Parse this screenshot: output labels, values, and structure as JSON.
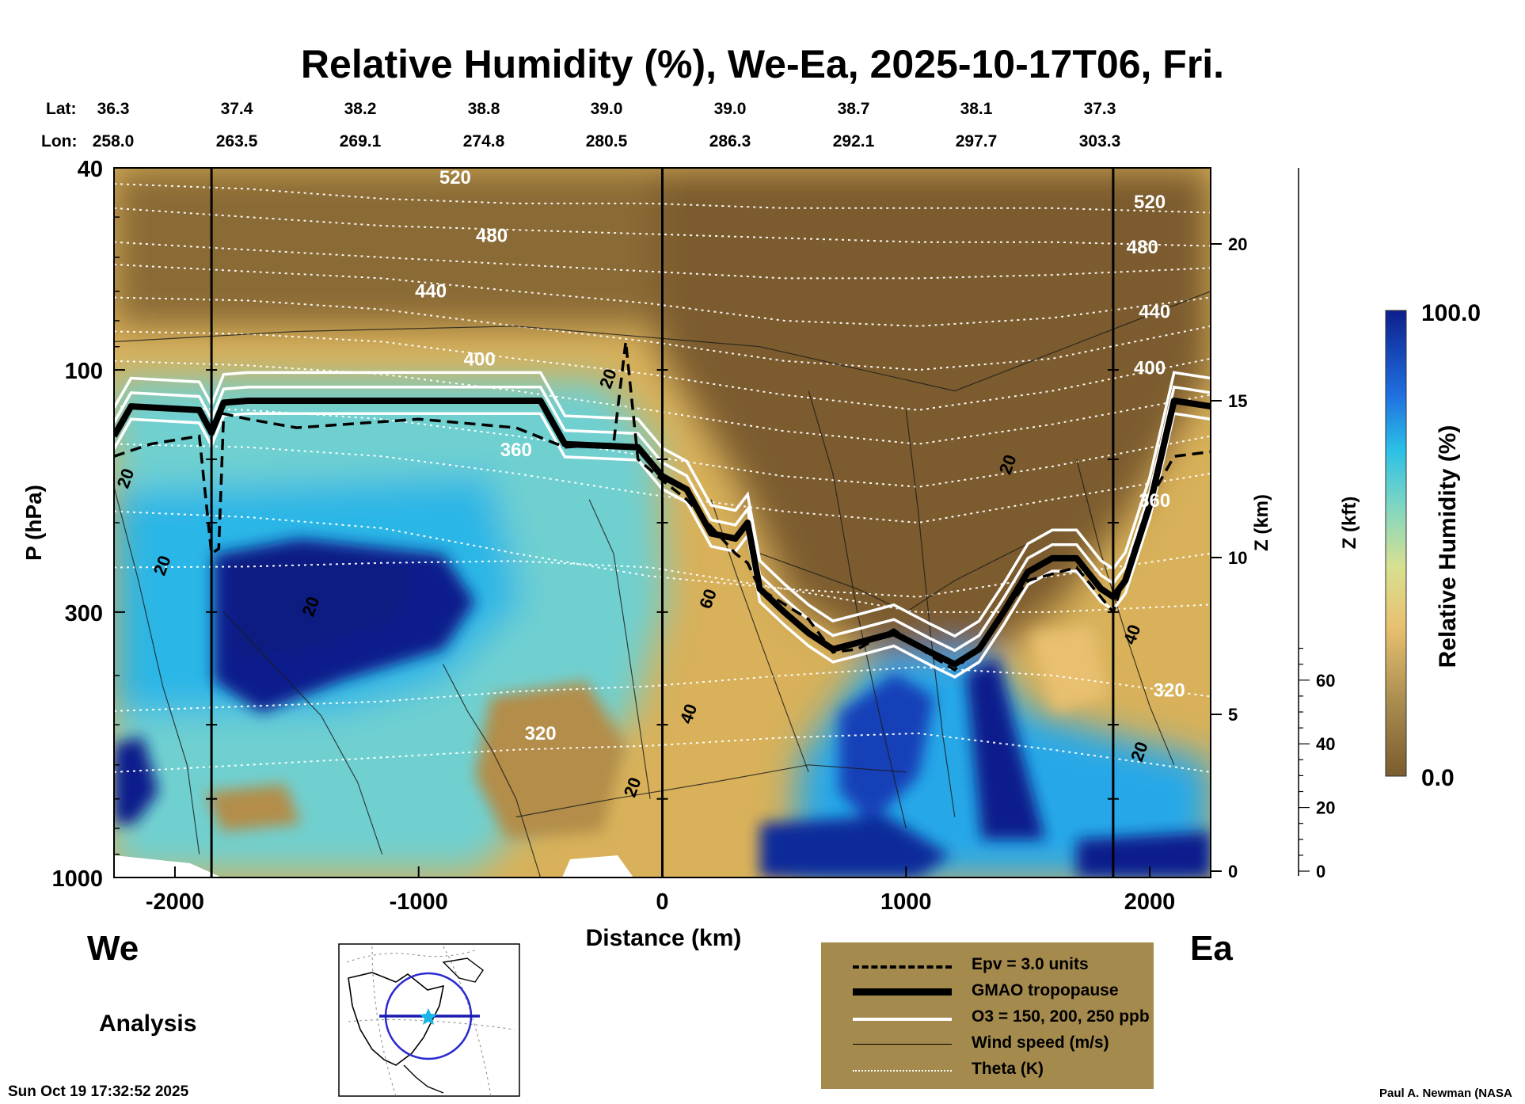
{
  "title": "Relative Humidity (%), We-Ea, 2025-10-17T06, Fri.",
  "coords": {
    "lat_label": "Lat:",
    "lon_label": "Lon:",
    "lat": [
      "36.3",
      "37.4",
      "38.2",
      "38.8",
      "39.0",
      "39.0",
      "38.7",
      "38.1",
      "37.3"
    ],
    "lon": [
      "258.0",
      "263.5",
      "269.1",
      "274.8",
      "280.5",
      "286.3",
      "292.1",
      "297.7",
      "303.3"
    ]
  },
  "direction": {
    "west": "We",
    "east": "Ea"
  },
  "analysis_label": "Analysis",
  "timestamp": "Sun Oct 19 17:32:52 2025",
  "credit": "Paul A. Newman (NASA",
  "legend": [
    {
      "label": "Epv = 3.0 units",
      "style": "dashed"
    },
    {
      "label": "GMAO tropopause",
      "style": "thick"
    },
    {
      "label": "O3 = 150, 200, 250 ppb",
      "style": "white"
    },
    {
      "label": "Wind speed (m/s)",
      "style": "thin"
    },
    {
      "label": "Theta (K)",
      "style": "dotted"
    }
  ],
  "colorbar": {
    "label": "Relative Humidity (%)",
    "max": "100.0",
    "min": "0.0"
  },
  "chart_data": {
    "type": "heatmap",
    "title": "Relative Humidity (%), We-Ea, 2025-10-17T06, Fri.",
    "xlabel": "Distance (km)",
    "ylabel": "P (hPa)",
    "y2label": "Z (km)",
    "y3label": "Z (kft)",
    "xlim": [
      -2250,
      2250
    ],
    "ylim": [
      1000,
      40
    ],
    "yscale": "log",
    "x_ticks": [
      -2000,
      -1000,
      0,
      1000,
      2000
    ],
    "x_tick_labels": [
      "-2000",
      "-1000",
      "0",
      "1000",
      "2000"
    ],
    "y_ticks": [
      40,
      100,
      300,
      1000
    ],
    "z_km_ticks": [
      0,
      5,
      10,
      15,
      20
    ],
    "z_kft_ticks": [
      0,
      20,
      40,
      60
    ],
    "colorbar_range": [
      0,
      100
    ],
    "colors": {
      "dry": "#7b5c2e",
      "moist": "#0d1f8c"
    },
    "tropopause": {
      "x": [
        -2250,
        -2180,
        -1900,
        -1850,
        -1800,
        -1700,
        -1500,
        -1000,
        -500,
        -400,
        -100,
        0,
        100,
        200,
        300,
        350,
        400,
        500,
        600,
        700,
        800,
        950,
        1100,
        1200,
        1300,
        1400,
        1500,
        1600,
        1700,
        1800,
        1850,
        1900,
        2000,
        2100,
        2250
      ],
      "p": [
        135,
        118,
        120,
        133,
        116,
        115,
        115,
        115,
        115,
        140,
        142,
        162,
        172,
        210,
        215,
        200,
        270,
        300,
        330,
        355,
        345,
        330,
        360,
        380,
        355,
        300,
        250,
        235,
        235,
        270,
        280,
        260,
        185,
        115,
        118
      ]
    },
    "epv": {
      "x": [
        -2250,
        -2100,
        -1900,
        -1850,
        -1820,
        -1800,
        -1700,
        -1500,
        -1000,
        -600,
        -400,
        -200,
        -150,
        -100,
        0,
        100,
        300,
        350,
        400,
        600,
        700,
        800,
        950,
        1100,
        1200,
        1300,
        1500,
        1700,
        1850,
        2000,
        2100,
        2250
      ],
      "p": [
        148,
        140,
        135,
        230,
        225,
        122,
        125,
        130,
        125,
        130,
        142,
        140,
        88,
        150,
        165,
        180,
        230,
        240,
        270,
        310,
        360,
        355,
        325,
        365,
        390,
        350,
        260,
        245,
        300,
        180,
        148,
        145
      ]
    },
    "theta_labels": [
      {
        "text": "520",
        "x": -850,
        "p": 43
      },
      {
        "text": "480",
        "x": -700,
        "p": 56
      },
      {
        "text": "440",
        "x": -950,
        "p": 72
      },
      {
        "text": "400",
        "x": -750,
        "p": 98
      },
      {
        "text": "360",
        "x": -600,
        "p": 148
      },
      {
        "text": "320",
        "x": -500,
        "p": 535
      },
      {
        "text": "520",
        "x": 2000,
        "p": 48
      },
      {
        "text": "480",
        "x": 1970,
        "p": 59
      },
      {
        "text": "440",
        "x": 2020,
        "p": 79
      },
      {
        "text": "400",
        "x": 2000,
        "p": 102
      },
      {
        "text": "360",
        "x": 2020,
        "p": 186
      },
      {
        "text": "320",
        "x": 2080,
        "p": 440
      }
    ],
    "wind_labels": [
      {
        "text": "20",
        "x": -2180,
        "p": 165
      },
      {
        "text": "20",
        "x": -2030,
        "p": 245
      },
      {
        "text": "20",
        "x": -1420,
        "p": 295
      },
      {
        "text": "20",
        "x": -200,
        "p": 105
      },
      {
        "text": "20",
        "x": 1440,
        "p": 155
      },
      {
        "text": "60",
        "x": 210,
        "p": 285
      },
      {
        "text": "40",
        "x": 130,
        "p": 480
      },
      {
        "text": "40",
        "x": 1950,
        "p": 335
      },
      {
        "text": "20",
        "x": 1980,
        "p": 570
      },
      {
        "text": "20",
        "x": -100,
        "p": 670
      }
    ]
  }
}
